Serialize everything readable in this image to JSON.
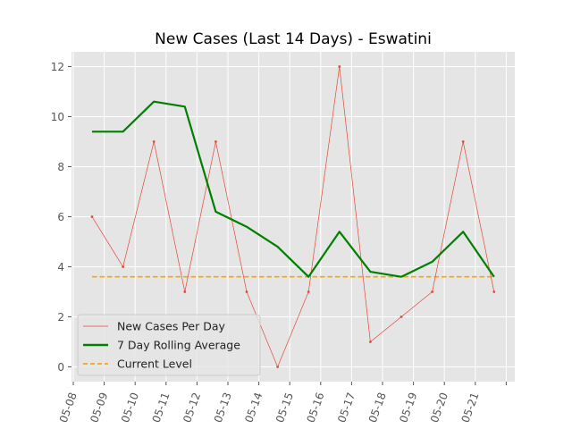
{
  "chart_data": {
    "type": "line",
    "title": "New Cases (Last 14 Days) - Eswatini",
    "xlabel": "",
    "ylabel": "",
    "categories": [
      "05-08",
      "05-09",
      "05-10",
      "05-11",
      "05-12",
      "05-13",
      "05-14",
      "05-15",
      "05-16",
      "05-17",
      "05-18",
      "05-19",
      "05-20",
      "05-21"
    ],
    "ylim": [
      -0.6,
      12.6
    ],
    "yticks": [
      0,
      2,
      4,
      6,
      8,
      10,
      12
    ],
    "grid": true,
    "legend_position": "lower-left",
    "series": [
      {
        "name": "New Cases Per Day",
        "values": [
          6,
          4,
          9,
          3,
          9,
          3,
          0,
          3,
          12,
          1,
          2,
          3,
          9,
          3
        ],
        "color": "#E24A33",
        "style": "line-markers"
      },
      {
        "name": "7 Day Rolling Average",
        "values": [
          9.4,
          9.4,
          10.6,
          10.4,
          6.2,
          5.6,
          4.8,
          3.6,
          5.4,
          3.8,
          3.6,
          4.2,
          5.4,
          3.6
        ],
        "color": "#008000",
        "style": "thick-line"
      },
      {
        "name": "Current Level",
        "values": [
          3.6,
          3.6,
          3.6,
          3.6,
          3.6,
          3.6,
          3.6,
          3.6,
          3.6,
          3.6,
          3.6,
          3.6,
          3.6,
          3.6
        ],
        "color": "#FFA500",
        "style": "dashed"
      }
    ]
  }
}
